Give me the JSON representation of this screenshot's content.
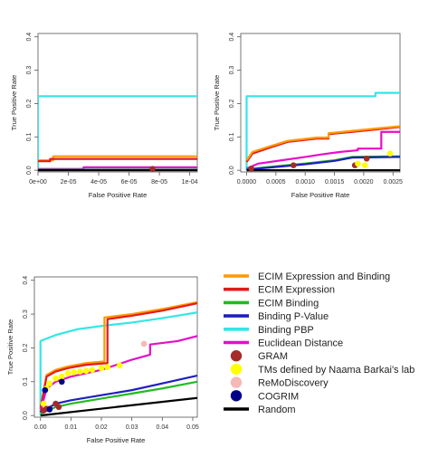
{
  "colors": {
    "ecim_expr_bind": "#FF9900",
    "ecim_expr": "#E41A1C",
    "ecim_bind": "#22BB22",
    "binding_pvalue": "#1F1FBF",
    "binding_pbp": "#33E6E6",
    "euclidean": "#E60EC7",
    "gram": "#A52A2A",
    "tms": "#FFFF00",
    "remo": "#F7B8B8",
    "cogrim": "#00008B",
    "random": "#000000"
  },
  "legend": {
    "placement": "bottom-right",
    "entries": [
      {
        "label": "ECIM Expression and Binding",
        "kind": "line",
        "color_key": "ecim_expr_bind"
      },
      {
        "label": "ECIM Expression",
        "kind": "line",
        "color_key": "ecim_expr"
      },
      {
        "label": "ECIM Binding",
        "kind": "line",
        "color_key": "ecim_bind"
      },
      {
        "label": "Binding P-Value",
        "kind": "line",
        "color_key": "binding_pvalue"
      },
      {
        "label": "Binding PBP",
        "kind": "line",
        "color_key": "binding_pbp"
      },
      {
        "label": "Euclidean Distance",
        "kind": "line",
        "color_key": "euclidean"
      },
      {
        "label": "GRAM",
        "kind": "point",
        "color_key": "gram"
      },
      {
        "label": "TMs defined by Naama Barkai's lab",
        "kind": "point",
        "color_key": "tms"
      },
      {
        "label": "ReMoDiscovery",
        "kind": "point",
        "color_key": "remo"
      },
      {
        "label": "COGRIM",
        "kind": "point",
        "color_key": "cogrim"
      },
      {
        "label": "Random",
        "kind": "line",
        "color_key": "random"
      }
    ]
  },
  "chart_data": [
    {
      "type": "line",
      "xlabel": "False Positive Rate",
      "ylabel": "True Positive Rate",
      "xlim": [
        0,
        0.000105
      ],
      "ylim": [
        -0.005,
        0.41
      ],
      "xticks": [
        0,
        2e-05,
        4e-05,
        6e-05,
        8e-05,
        0.0001
      ],
      "xtick_labels": [
        "0e+00",
        "2e-05",
        "4e-05",
        "6e-05",
        "8e-05",
        "1e-04"
      ],
      "yticks": [
        0,
        0.1,
        0.2,
        0.3,
        0.4
      ],
      "ytick_labels": [
        "0.0",
        "0.1",
        "0.2",
        "0.3",
        "0.4"
      ],
      "grid": false,
      "series": [
        {
          "color_key": "binding_pbp",
          "x": [
            0,
            0,
            2e-06,
            0.000105
          ],
          "y": [
            0,
            0.222,
            0.222,
            0.222
          ]
        },
        {
          "color_key": "ecim_expr_bind",
          "x": [
            0,
            1e-05,
            1e-05,
            0.000105
          ],
          "y": [
            0.03,
            0.03,
            0.042,
            0.042
          ]
        },
        {
          "color_key": "ecim_expr",
          "x": [
            0,
            8e-06,
            8e-06,
            0.000105
          ],
          "y": [
            0.027,
            0.027,
            0.034,
            0.034
          ]
        },
        {
          "color_key": "euclidean",
          "x": [
            0,
            3e-05,
            3e-05,
            0.000105
          ],
          "y": [
            0.004,
            0.004,
            0.009,
            0.009
          ]
        },
        {
          "color_key": "ecim_bind",
          "x": [
            0,
            0.000105
          ],
          "y": [
            0.002,
            0.002
          ]
        },
        {
          "color_key": "binding_pvalue",
          "x": [
            0,
            0.000105
          ],
          "y": [
            0.001,
            0.001
          ]
        },
        {
          "color_key": "random",
          "x": [
            0,
            0.000105
          ],
          "y": [
            0.0,
            0.0
          ]
        }
      ],
      "points": [
        {
          "color_key": "gram",
          "x": 7.55e-05,
          "y": 0.004
        }
      ]
    },
    {
      "type": "line",
      "xlabel": "False Positive Rate",
      "ylabel": "True Positive Rate",
      "xlim": [
        -0.0001,
        0.00262
      ],
      "ylim": [
        -0.005,
        0.41
      ],
      "xticks": [
        0,
        0.0005,
        0.001,
        0.0015,
        0.002,
        0.0025
      ],
      "xtick_labels": [
        "0.0000",
        "0.0005",
        "0.0010",
        "0.0015",
        "0.0020",
        "0.0025"
      ],
      "yticks": [
        0,
        0.1,
        0.2,
        0.3,
        0.4
      ],
      "ytick_labels": [
        "0.0",
        "0.1",
        "0.2",
        "0.3",
        "0.4"
      ],
      "grid": false,
      "series": [
        {
          "color_key": "binding_pbp",
          "x": [
            0,
            0,
            0.0001,
            0.0022,
            0.0022,
            0.00262
          ],
          "y": [
            0,
            0.222,
            0.222,
            0.222,
            0.232,
            0.232
          ]
        },
        {
          "color_key": "ecim_expr",
          "x": [
            0,
            0.0001,
            0.0004,
            0.0007,
            0.0012,
            0.0014,
            0.0014,
            0.0018,
            0.0022,
            0.00262
          ],
          "y": [
            0.025,
            0.05,
            0.068,
            0.085,
            0.095,
            0.095,
            0.108,
            0.115,
            0.122,
            0.13
          ]
        },
        {
          "color_key": "ecim_expr_bind",
          "x": [
            0,
            0.0001,
            0.0004,
            0.0007,
            0.0012,
            0.0014,
            0.0014,
            0.0018,
            0.0022,
            0.00262
          ],
          "y": [
            0.03,
            0.055,
            0.072,
            0.088,
            0.098,
            0.098,
            0.111,
            0.118,
            0.125,
            0.132
          ]
        },
        {
          "color_key": "euclidean",
          "x": [
            0,
            0.0002,
            0.0006,
            0.001,
            0.0013,
            0.0016,
            0.0019,
            0.0019,
            0.0023,
            0.0023,
            0.00262
          ],
          "y": [
            0.005,
            0.02,
            0.03,
            0.04,
            0.048,
            0.055,
            0.06,
            0.065,
            0.065,
            0.115,
            0.115
          ]
        },
        {
          "color_key": "ecim_bind",
          "x": [
            0,
            0.0005,
            0.001,
            0.0015,
            0.0018,
            0.00262
          ],
          "y": [
            0.003,
            0.012,
            0.02,
            0.03,
            0.04,
            0.042
          ]
        },
        {
          "color_key": "binding_pvalue",
          "x": [
            0,
            0.0005,
            0.001,
            0.0015,
            0.0018,
            0.00262
          ],
          "y": [
            0.002,
            0.01,
            0.018,
            0.028,
            0.038,
            0.04
          ]
        },
        {
          "color_key": "random",
          "x": [
            0,
            0.00262
          ],
          "y": [
            0.0,
            0.0
          ]
        }
      ],
      "points": [
        {
          "color_key": "gram",
          "x": 8e-05,
          "y": 0.005
        },
        {
          "color_key": "gram",
          "x": 0.0008,
          "y": 0.015
        },
        {
          "color_key": "gram",
          "x": 0.00185,
          "y": 0.015
        },
        {
          "color_key": "tms",
          "x": 0.0019,
          "y": 0.02
        },
        {
          "color_key": "tms",
          "x": 0.00202,
          "y": 0.015
        },
        {
          "color_key": "tms",
          "x": 0.00245,
          "y": 0.05
        },
        {
          "color_key": "gram",
          "x": 0.00205,
          "y": 0.035
        }
      ]
    },
    {
      "type": "line",
      "xlabel": "False Positive Rate",
      "ylabel": "True Positive Rate",
      "xlim": [
        -0.002,
        0.0515
      ],
      "ylim": [
        -0.005,
        0.41
      ],
      "xticks": [
        0,
        0.01,
        0.02,
        0.03,
        0.04,
        0.05
      ],
      "xtick_labels": [
        "0.00",
        "0.01",
        "0.02",
        "0.03",
        "0.04",
        "0.05"
      ],
      "yticks": [
        0,
        0.1,
        0.2,
        0.3,
        0.4
      ],
      "ytick_labels": [
        "0.0",
        "0.1",
        "0.2",
        "0.3",
        "0.4"
      ],
      "grid": false,
      "series": [
        {
          "color_key": "binding_pbp",
          "x": [
            0,
            0,
            0.0004,
            0.005,
            0.012,
            0.02,
            0.03,
            0.04,
            0.0515
          ],
          "y": [
            0,
            0.22,
            0.222,
            0.238,
            0.255,
            0.265,
            0.275,
            0.288,
            0.305
          ]
        },
        {
          "color_key": "ecim_expr_bind",
          "x": [
            0,
            0.002,
            0.005,
            0.009,
            0.015,
            0.021,
            0.021,
            0.03,
            0.04,
            0.0515
          ],
          "y": [
            0.02,
            0.12,
            0.135,
            0.145,
            0.155,
            0.16,
            0.29,
            0.3,
            0.315,
            0.335
          ]
        },
        {
          "color_key": "ecim_expr",
          "x": [
            0,
            0.002,
            0.005,
            0.009,
            0.015,
            0.022,
            0.022,
            0.03,
            0.04,
            0.0515
          ],
          "y": [
            0.02,
            0.115,
            0.13,
            0.14,
            0.15,
            0.155,
            0.285,
            0.295,
            0.31,
            0.332
          ]
        },
        {
          "color_key": "euclidean",
          "x": [
            0,
            0.002,
            0.005,
            0.01,
            0.015,
            0.02,
            0.025,
            0.03,
            0.036,
            0.036,
            0.045,
            0.0515
          ],
          "y": [
            0.01,
            0.08,
            0.1,
            0.115,
            0.125,
            0.135,
            0.15,
            0.165,
            0.18,
            0.21,
            0.22,
            0.235
          ]
        },
        {
          "color_key": "binding_pvalue",
          "x": [
            0,
            0.005,
            0.01,
            0.02,
            0.03,
            0.04,
            0.0515
          ],
          "y": [
            0.01,
            0.035,
            0.045,
            0.06,
            0.075,
            0.095,
            0.118
          ]
        },
        {
          "color_key": "ecim_bind",
          "x": [
            0,
            0.005,
            0.01,
            0.02,
            0.03,
            0.04,
            0.0515
          ],
          "y": [
            0.005,
            0.025,
            0.035,
            0.05,
            0.065,
            0.08,
            0.1
          ]
        },
        {
          "color_key": "random",
          "x": [
            0,
            0.0515
          ],
          "y": [
            0.0,
            0.052
          ]
        }
      ],
      "points": [
        {
          "color_key": "tms",
          "x": 0.001,
          "y": 0.035
        },
        {
          "color_key": "tms",
          "x": 0.002,
          "y": 0.08
        },
        {
          "color_key": "tms",
          "x": 0.003,
          "y": 0.095
        },
        {
          "color_key": "tms",
          "x": 0.005,
          "y": 0.11
        },
        {
          "color_key": "tms",
          "x": 0.007,
          "y": 0.115
        },
        {
          "color_key": "tms",
          "x": 0.009,
          "y": 0.125
        },
        {
          "color_key": "tms",
          "x": 0.011,
          "y": 0.128
        },
        {
          "color_key": "tms",
          "x": 0.013,
          "y": 0.13
        },
        {
          "color_key": "tms",
          "x": 0.015,
          "y": 0.132
        },
        {
          "color_key": "tms",
          "x": 0.017,
          "y": 0.135
        },
        {
          "color_key": "tms",
          "x": 0.02,
          "y": 0.14
        },
        {
          "color_key": "tms",
          "x": 0.022,
          "y": 0.143
        },
        {
          "color_key": "tms",
          "x": 0.026,
          "y": 0.148
        },
        {
          "color_key": "remo",
          "x": 0.034,
          "y": 0.212
        },
        {
          "color_key": "cogrim",
          "x": 0.0015,
          "y": 0.075
        },
        {
          "color_key": "cogrim",
          "x": 0.007,
          "y": 0.1
        },
        {
          "color_key": "gram",
          "x": 0.001,
          "y": 0.015
        },
        {
          "color_key": "gram",
          "x": 0.002,
          "y": 0.02
        },
        {
          "color_key": "gram",
          "x": 0.003,
          "y": 0.02
        },
        {
          "color_key": "gram",
          "x": 0.005,
          "y": 0.035
        },
        {
          "color_key": "gram",
          "x": 0.006,
          "y": 0.025
        },
        {
          "color_key": "cogrim",
          "x": 0.003,
          "y": 0.018
        }
      ]
    }
  ]
}
